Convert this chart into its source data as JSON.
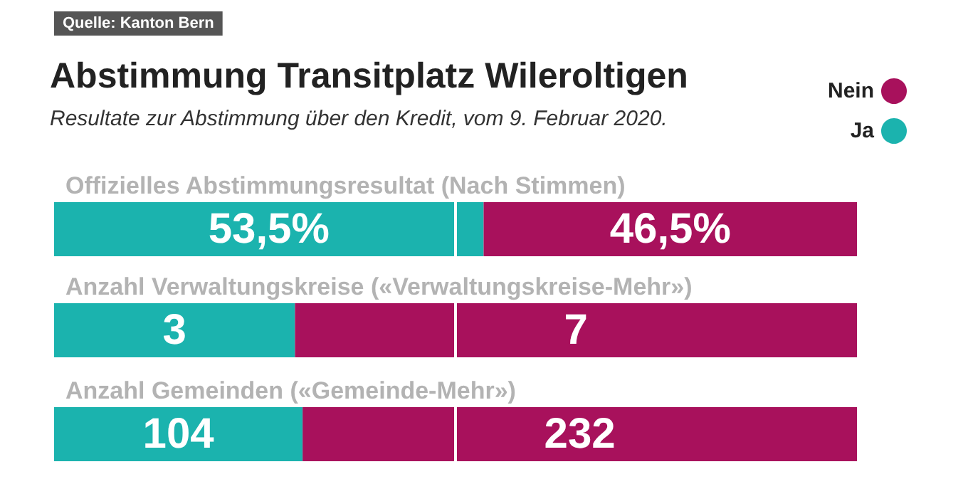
{
  "chart_data": [
    {
      "type": "bar",
      "orientation": "horizontal",
      "stacked": true,
      "title": "Abstimmung Transitplatz Wileroltigen",
      "subtitle": "Resultate zur Abstimmung über den Kredit, vom 9. Februar 2020.",
      "annotations": [
        "Quelle: Kanton Bern"
      ],
      "legend": "top right",
      "tick_labels": "y",
      "categories": [
        "Offizielles Abstimmungsresultat (Nach Stimmen)"
      ],
      "xlim": [
        0,
        100
      ],
      "series": [
        {
          "name": "Ja",
          "color": "#1bb3ae",
          "values": [
            53.5
          ],
          "value_labels": [
            "53,5%"
          ]
        },
        {
          "name": "Nein",
          "color": "#a8115c",
          "values": [
            46.5
          ],
          "value_labels": [
            "46,5%"
          ]
        }
      ],
      "ref_lines": [
        {
          "axis": "x",
          "value": 50,
          "color": "#ffffff"
        }
      ]
    },
    {
      "type": "bar",
      "orientation": "horizontal",
      "stacked": true,
      "tick_labels": "y",
      "data_labels": true,
      "categories": [
        "Anzahl Verwaltungskreise («Verwaltungskreise-Mehr»)"
      ],
      "xlim": [
        0,
        10
      ],
      "series": [
        {
          "color": "#1bb3ae",
          "values": [
            3
          ]
        },
        {
          "color": "#a8115c",
          "values": [
            7
          ]
        }
      ],
      "ref_lines": [
        {
          "axis": "x",
          "value": 5,
          "color": "#ffffff"
        }
      ]
    },
    {
      "type": "bar",
      "orientation": "horizontal",
      "stacked": true,
      "tick_labels": "y",
      "data_labels": true,
      "categories": [
        "Anzahl Gemeinden («Gemeinde-Mehr»)"
      ],
      "xlim": [
        0,
        336
      ],
      "series": [
        {
          "color": "#1bb3ae",
          "values": [
            104
          ]
        },
        {
          "color": "#a8115c",
          "values": [
            232
          ]
        }
      ],
      "ref_lines": [
        {
          "axis": "x",
          "value": 168,
          "color": "#ffffff"
        }
      ]
    }
  ]
}
